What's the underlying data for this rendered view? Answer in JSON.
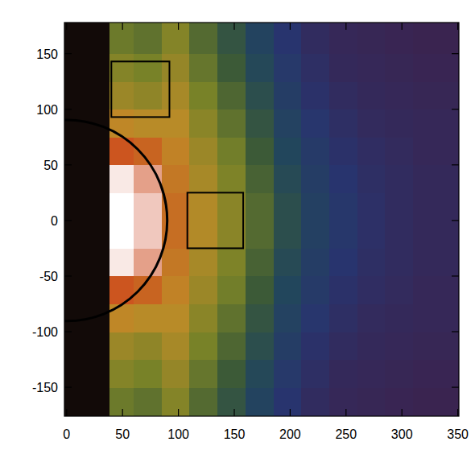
{
  "chart_data": {
    "type": "heatmap",
    "xlim": [
      -2,
      351
    ],
    "ylim": [
      -176,
      178
    ],
    "xticks": [
      0,
      50,
      100,
      150,
      200,
      250,
      300,
      350
    ],
    "yticks": [
      -150,
      -100,
      -50,
      0,
      50,
      100,
      150
    ],
    "x_edges": [
      0,
      38,
      60,
      85,
      110,
      135,
      160,
      185,
      210,
      235,
      260,
      285,
      310,
      351
    ],
    "y_edges": [
      -176,
      -150,
      -125,
      -100,
      -75,
      -50,
      -25,
      0,
      25,
      50,
      75,
      100,
      125,
      150,
      178
    ],
    "color_range": [
      0,
      100
    ],
    "cells": [
      [
        0,
        60,
        58,
        64,
        56,
        49,
        40,
        30,
        24,
        21,
        20,
        19,
        18
      ],
      [
        0,
        64,
        62,
        67,
        59,
        52,
        43,
        33,
        26,
        22,
        21,
        20,
        19
      ],
      [
        0,
        68,
        66,
        70,
        62,
        55,
        46,
        36,
        28,
        24,
        22,
        21,
        20
      ],
      [
        0,
        75,
        73,
        73,
        65,
        58,
        49,
        39,
        31,
        26,
        23,
        22,
        21
      ],
      [
        0,
        85,
        82,
        76,
        68,
        61,
        52,
        42,
        34,
        28,
        25,
        23,
        21
      ],
      [
        0,
        98,
        92,
        78,
        70,
        63,
        54,
        44,
        36,
        30,
        26,
        24,
        22
      ],
      [
        0,
        100,
        95,
        80,
        72,
        65,
        56,
        46,
        38,
        32,
        27,
        24,
        22
      ],
      [
        0,
        100,
        95,
        80,
        72,
        65,
        56,
        46,
        38,
        32,
        27,
        24,
        22
      ],
      [
        0,
        98,
        92,
        78,
        70,
        63,
        54,
        44,
        36,
        30,
        26,
        24,
        22
      ],
      [
        0,
        85,
        82,
        76,
        68,
        61,
        52,
        42,
        34,
        28,
        25,
        23,
        21
      ],
      [
        0,
        75,
        73,
        73,
        65,
        58,
        49,
        39,
        31,
        26,
        23,
        22,
        21
      ],
      [
        0,
        68,
        66,
        70,
        62,
        55,
        46,
        36,
        28,
        24,
        22,
        21,
        20
      ],
      [
        0,
        64,
        62,
        67,
        59,
        52,
        43,
        33,
        26,
        22,
        21,
        20,
        19
      ],
      [
        0,
        60,
        58,
        64,
        56,
        49,
        40,
        30,
        24,
        21,
        20,
        19,
        18
      ]
    ],
    "circle": {
      "cx": 0,
      "cy": 0,
      "r": 90
    },
    "boxes": [
      {
        "x0": 40,
        "x1": 92,
        "y0": 93,
        "y1": 143
      },
      {
        "x0": 108,
        "x1": 158,
        "y0": -25,
        "y1": 25
      }
    ]
  }
}
